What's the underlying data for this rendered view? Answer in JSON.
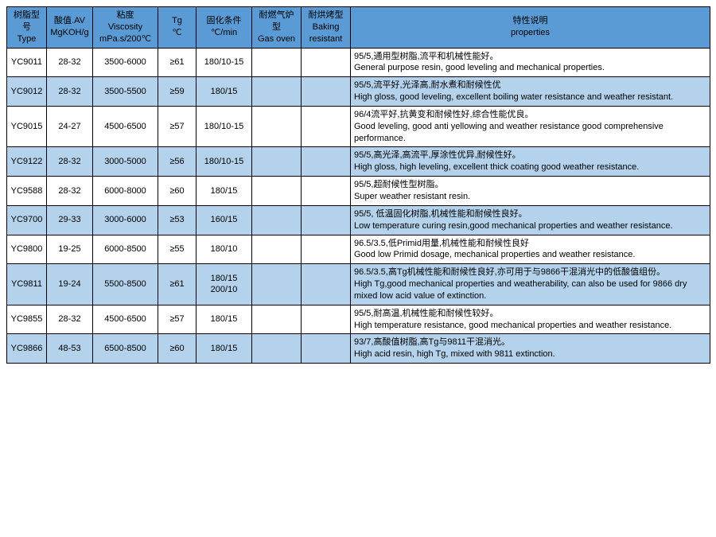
{
  "colors": {
    "header_bg": "#5b9bd5",
    "row_alt_bg": "#b4d2ec",
    "row_bg": "#ffffff",
    "border": "#000000",
    "text": "#000000"
  },
  "columns": [
    {
      "key": "type",
      "cn": "树脂型号",
      "en": "Type"
    },
    {
      "key": "av",
      "cn": "酸值.AV",
      "en": "MgKOH/g"
    },
    {
      "key": "visc",
      "cn": "粘度",
      "en": "Viscosity\nmPa.s/200℃"
    },
    {
      "key": "tg",
      "cn": "Tg",
      "en": "℃"
    },
    {
      "key": "cure",
      "cn": "固化条件",
      "en": "℃/min"
    },
    {
      "key": "gas",
      "cn": "耐燃气炉型",
      "en": "Gas oven"
    },
    {
      "key": "bake",
      "cn": "耐烘烤型",
      "en": "Baking\nresistant"
    },
    {
      "key": "props",
      "cn": "特性说明",
      "en": "properties"
    }
  ],
  "rows": [
    {
      "type": "YC9011",
      "av": "28-32",
      "visc": "3500-6000",
      "tg": "≥61",
      "cure": "180/10-15",
      "gas": "",
      "bake": "",
      "cn": "95/5,通用型树脂,流平和机械性能好。",
      "en": "General purpose resin, good leveling and mechanical properties."
    },
    {
      "type": "YC9012",
      "av": "28-32",
      "visc": "3500-5500",
      "tg": "≥59",
      "cure": "180/15",
      "gas": "",
      "bake": "",
      "cn": "95/5,流平好,光泽高,耐水煮和耐候性优",
      "en": "High gloss, good leveling, excellent boiling water resistance and weather resistant."
    },
    {
      "type": "YC9015",
      "av": "24-27",
      "visc": "4500-6500",
      "tg": "≥57",
      "cure": "180/10-15",
      "gas": "",
      "bake": "",
      "cn": "96/4流平好,抗黄变和耐候性好,综合性能优良。",
      "en": "Good leveling, good anti yellowing and weather resistance good comprehensive performance."
    },
    {
      "type": "YC9122",
      "av": "28-32",
      "visc": "3000-5000",
      "tg": "≥56",
      "cure": "180/10-15",
      "gas": "",
      "bake": "",
      "cn": "95/5,高光泽,高流平,厚涂性优异,耐候性好。",
      "en": "High gloss, high leveling, excellent thick coating good weather resistance."
    },
    {
      "type": "YC9588",
      "av": "28-32",
      "visc": "6000-8000",
      "tg": "≥60",
      "cure": "180/15",
      "gas": "",
      "bake": "",
      "cn": "95/5,超耐候性型树脂。",
      "en": "Super weather resistant resin."
    },
    {
      "type": "YC9700",
      "av": "29-33",
      "visc": "3000-6000",
      "tg": "≥53",
      "cure": "160/15",
      "gas": "",
      "bake": "",
      "cn": "95/5, 低温固化树脂,机械性能和耐候性良好。",
      "en": "Low temperature curing resin,good mechanical properties and weather resistance."
    },
    {
      "type": "YC9800",
      "av": "19-25",
      "visc": "6000-8500",
      "tg": "≥55",
      "cure": "180/10",
      "gas": "",
      "bake": "",
      "cn": "96.5/3.5,低Primid用量,机械性能和耐候性良好",
      "en": "Good low Primid dosage, mechanical properties and weather resistance."
    },
    {
      "type": "YC9811",
      "av": "19-24",
      "visc": "5500-8500",
      "tg": "≥61",
      "cure": "180/15\n200/10",
      "gas": "",
      "bake": "",
      "cn": "96.5/3.5,高Tg机械性能和耐候性良好,亦可用于与9866干混消光中的低酸值组份。",
      "en": "High Tg,good mechanical properties and weatherability, can also be used for 9866 dry mixed low acid value of extinction."
    },
    {
      "type": "YC9855",
      "av": "28-32",
      "visc": "4500-6500",
      "tg": "≥57",
      "cure": "180/15",
      "gas": "",
      "bake": "",
      "cn": "95/5,耐高温,机械性能和耐候性较好。",
      "en": "High temperature resistance, good mechanical properties and weather resistance."
    },
    {
      "type": "YC9866",
      "av": "48-53",
      "visc": "6500-8500",
      "tg": "≥60",
      "cure": "180/15",
      "gas": "",
      "bake": "",
      "cn": "93/7,高酸值树脂,高Tg与9811干混消光。",
      "en": "High acid resin, high Tg, mixed with 9811 extinction."
    }
  ]
}
